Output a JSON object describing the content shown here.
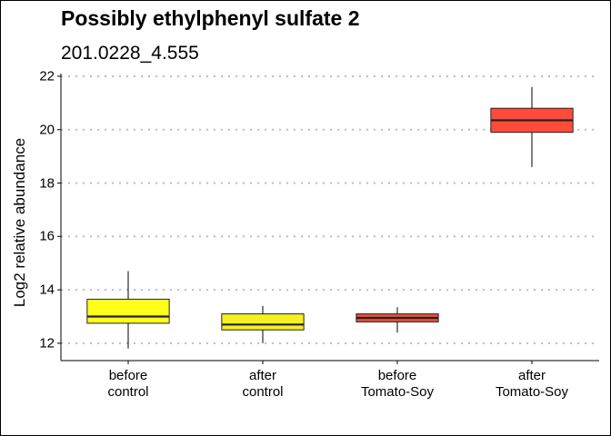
{
  "chart_data": {
    "type": "boxplot",
    "title": "Possibly ethylphenyl sulfate 2",
    "subtitle": "201.0228_4.555",
    "ylabel": "Log2 relative abundance",
    "xlabel": "",
    "ylim": [
      11.35,
      22.1
    ],
    "yticks": [
      12,
      14,
      16,
      18,
      20,
      22
    ],
    "grid": "horizontal dotted",
    "categories": [
      {
        "line1": "before",
        "line2": "control"
      },
      {
        "line1": "after",
        "line2": "control"
      },
      {
        "line1": "before",
        "line2": "Tomato-Soy"
      },
      {
        "line1": "after",
        "line2": "Tomato-Soy"
      }
    ],
    "boxes": [
      {
        "whisker_low": 11.8,
        "q1": 12.75,
        "median": 13.0,
        "q3": 13.65,
        "whisker_high": 14.7,
        "color": "#FFFF1A"
      },
      {
        "whisker_low": 12.0,
        "q1": 12.5,
        "median": 12.7,
        "q3": 13.1,
        "whisker_high": 13.4,
        "color": "#F6F01E"
      },
      {
        "whisker_low": 12.4,
        "q1": 12.8,
        "median": 12.95,
        "q3": 13.1,
        "whisker_high": 13.35,
        "color": "#EE4B3A"
      },
      {
        "whisker_low": 18.6,
        "q1": 19.9,
        "median": 20.35,
        "q3": 20.8,
        "whisker_high": 21.6,
        "color": "#FF4B3A"
      }
    ]
  }
}
